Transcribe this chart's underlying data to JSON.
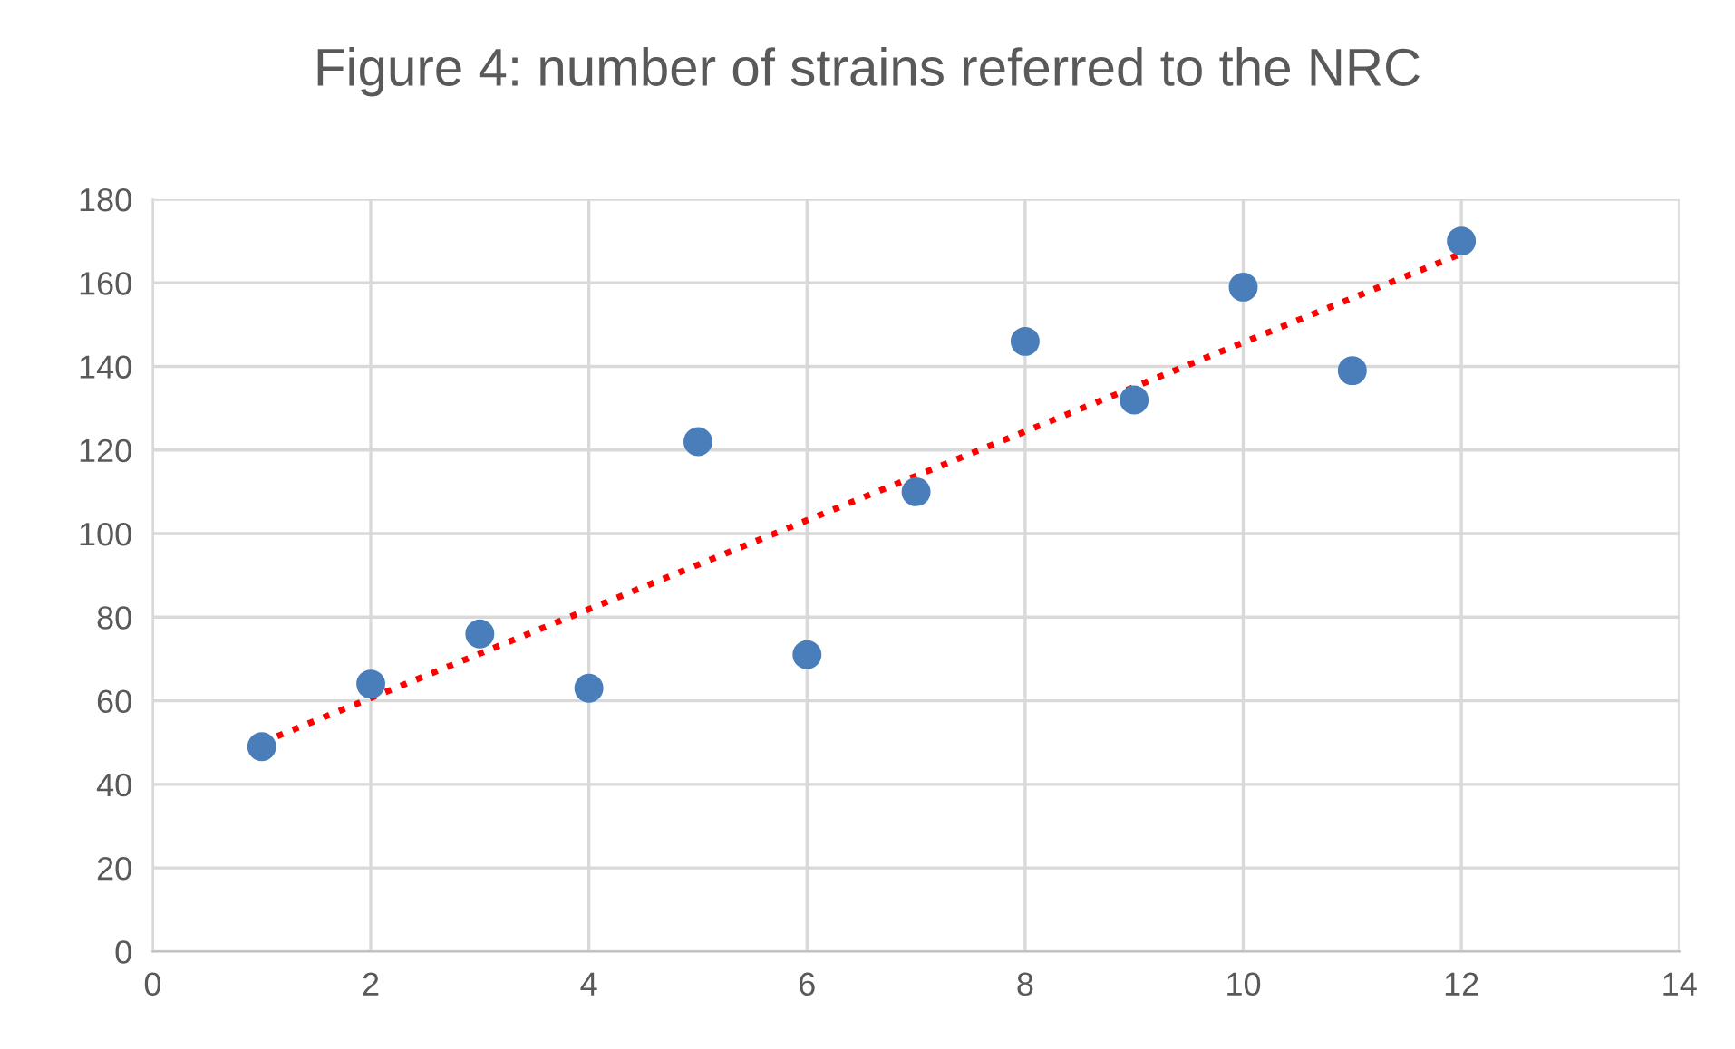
{
  "chart_data": {
    "type": "scatter",
    "title": "Figure 4: number of strains referred to the NRC",
    "xlim": [
      0,
      14
    ],
    "xticks": [
      0,
      2,
      4,
      6,
      8,
      10,
      12,
      14
    ],
    "ylim": [
      0,
      180
    ],
    "yticks": [
      0,
      20,
      40,
      60,
      80,
      100,
      120,
      140,
      160,
      180
    ],
    "grid": true,
    "series": [
      {
        "marker": "circle",
        "color": "#4a7ebb",
        "x": [
          1,
          2,
          3,
          4,
          5,
          6,
          7,
          8,
          9,
          10,
          11,
          12
        ],
        "values": [
          49,
          64,
          76,
          63,
          122,
          71,
          110,
          146,
          132,
          159,
          139,
          170
        ]
      },
      {
        "type": "line",
        "color": "#ff0000",
        "line_style": "dotted",
        "x": [
          1,
          12
        ],
        "values": [
          50,
          167
        ]
      }
    ]
  }
}
